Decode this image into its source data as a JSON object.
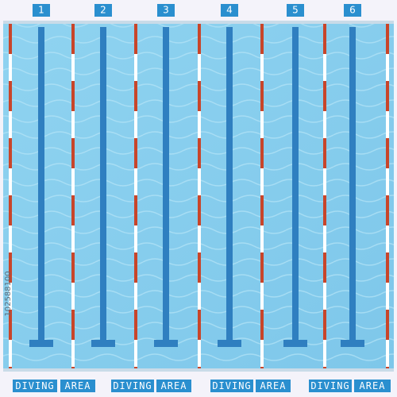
{
  "lanes": [
    {
      "number": "1"
    },
    {
      "number": "2"
    },
    {
      "number": "3"
    },
    {
      "number": "4"
    },
    {
      "number": "5"
    },
    {
      "number": "6"
    }
  ],
  "diving_signs": [
    {
      "words": [
        "DIVING",
        "AREA"
      ]
    },
    {
      "words": [
        "DIVING",
        "AREA"
      ]
    },
    {
      "words": [
        "DIVING",
        "AREA"
      ]
    },
    {
      "words": [
        "DIVING",
        "AREA"
      ]
    }
  ],
  "watermark": "102588100"
}
